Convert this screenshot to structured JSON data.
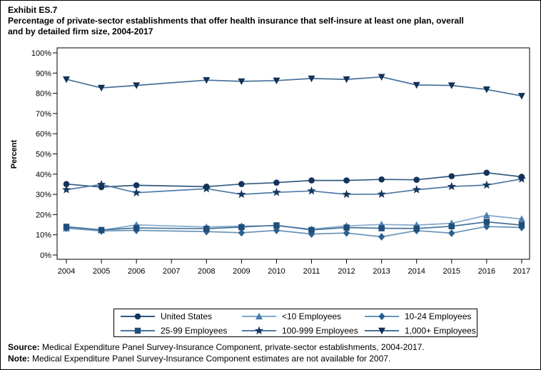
{
  "header": {
    "exhibit": "Exhibit ES.7",
    "title_line1": "Percentage of private-sector establishments that offer health insurance that self-insure at least one plan, overall",
    "title_line2": "and by detailed firm size, 2004-2017"
  },
  "footer": {
    "source_label": "Source:",
    "source_text": " Medical Expenditure Panel Survey-Insurance Component, private-sector establishments, 2004-2017.",
    "note_label": "Note:",
    "note_text": " Medical Expenditure Panel Survey-Insurance Component estimates are not available for 2007."
  },
  "chart_data": {
    "type": "line",
    "title": "Percentage of private-sector establishments that offer health insurance that self-insure at least one plan, overall and by detailed firm size, 2004-2017",
    "ylabel": "Percent",
    "ylim": [
      0,
      100
    ],
    "y_tick_step": 10,
    "y_tick_suffix": "%",
    "x_ticks": [
      2004,
      2005,
      2006,
      2007,
      2008,
      2009,
      2010,
      2011,
      2012,
      2013,
      2014,
      2015,
      2016,
      2017
    ],
    "x": [
      2004,
      2005,
      2006,
      2008,
      2009,
      2010,
      2011,
      2012,
      2013,
      2014,
      2015,
      2016,
      2017
    ],
    "note": "No data for 2007; lines connect 2006 to 2008 directly.",
    "legend_position": "bottom",
    "grid": false,
    "series": [
      {
        "name": "United States",
        "marker": "circle",
        "line_color": "#31597F",
        "marker_color": "#14335A",
        "values": [
          35.1,
          33.6,
          34.5,
          33.8,
          35.1,
          35.8,
          36.9,
          36.9,
          37.4,
          37.2,
          39.0,
          40.7,
          38.7
        ]
      },
      {
        "name": "<10 Employees",
        "marker": "triangle-up",
        "line_color": "#83A9CC",
        "marker_color": "#4B7CB1",
        "values": [
          13.2,
          12.2,
          14.9,
          13.8,
          14.3,
          14.5,
          12.8,
          14.4,
          15.1,
          14.8,
          15.7,
          19.6,
          17.8
        ]
      },
      {
        "name": "10-24 Employees",
        "marker": "diamond",
        "line_color": "#6A94B8",
        "marker_color": "#2B608F",
        "values": [
          13.3,
          11.9,
          12.2,
          11.6,
          11.0,
          12.2,
          10.4,
          10.9,
          9.0,
          12.1,
          10.8,
          14.1,
          13.6
        ]
      },
      {
        "name": "25-99 Employees",
        "marker": "square",
        "line_color": "#48739C",
        "marker_color": "#1F4E79",
        "values": [
          14.0,
          12.4,
          13.4,
          13.0,
          13.8,
          14.7,
          12.4,
          13.6,
          13.2,
          13.1,
          14.2,
          16.4,
          14.8
        ]
      },
      {
        "name": "100-999 Employees",
        "marker": "star",
        "line_color": "#4E7BA6",
        "marker_color": "#17375E",
        "values": [
          32.3,
          34.9,
          30.8,
          32.8,
          30.0,
          31.0,
          31.7,
          30.0,
          30.1,
          32.3,
          33.9,
          34.6,
          37.6
        ]
      },
      {
        "name": "1,000+ Employees",
        "marker": "triangle-down",
        "line_color": "#47719A",
        "marker_color": "#113158",
        "values": [
          86.9,
          82.7,
          83.9,
          86.5,
          85.9,
          86.3,
          87.3,
          86.9,
          88.1,
          84.1,
          83.9,
          81.9,
          78.7
        ]
      }
    ]
  }
}
